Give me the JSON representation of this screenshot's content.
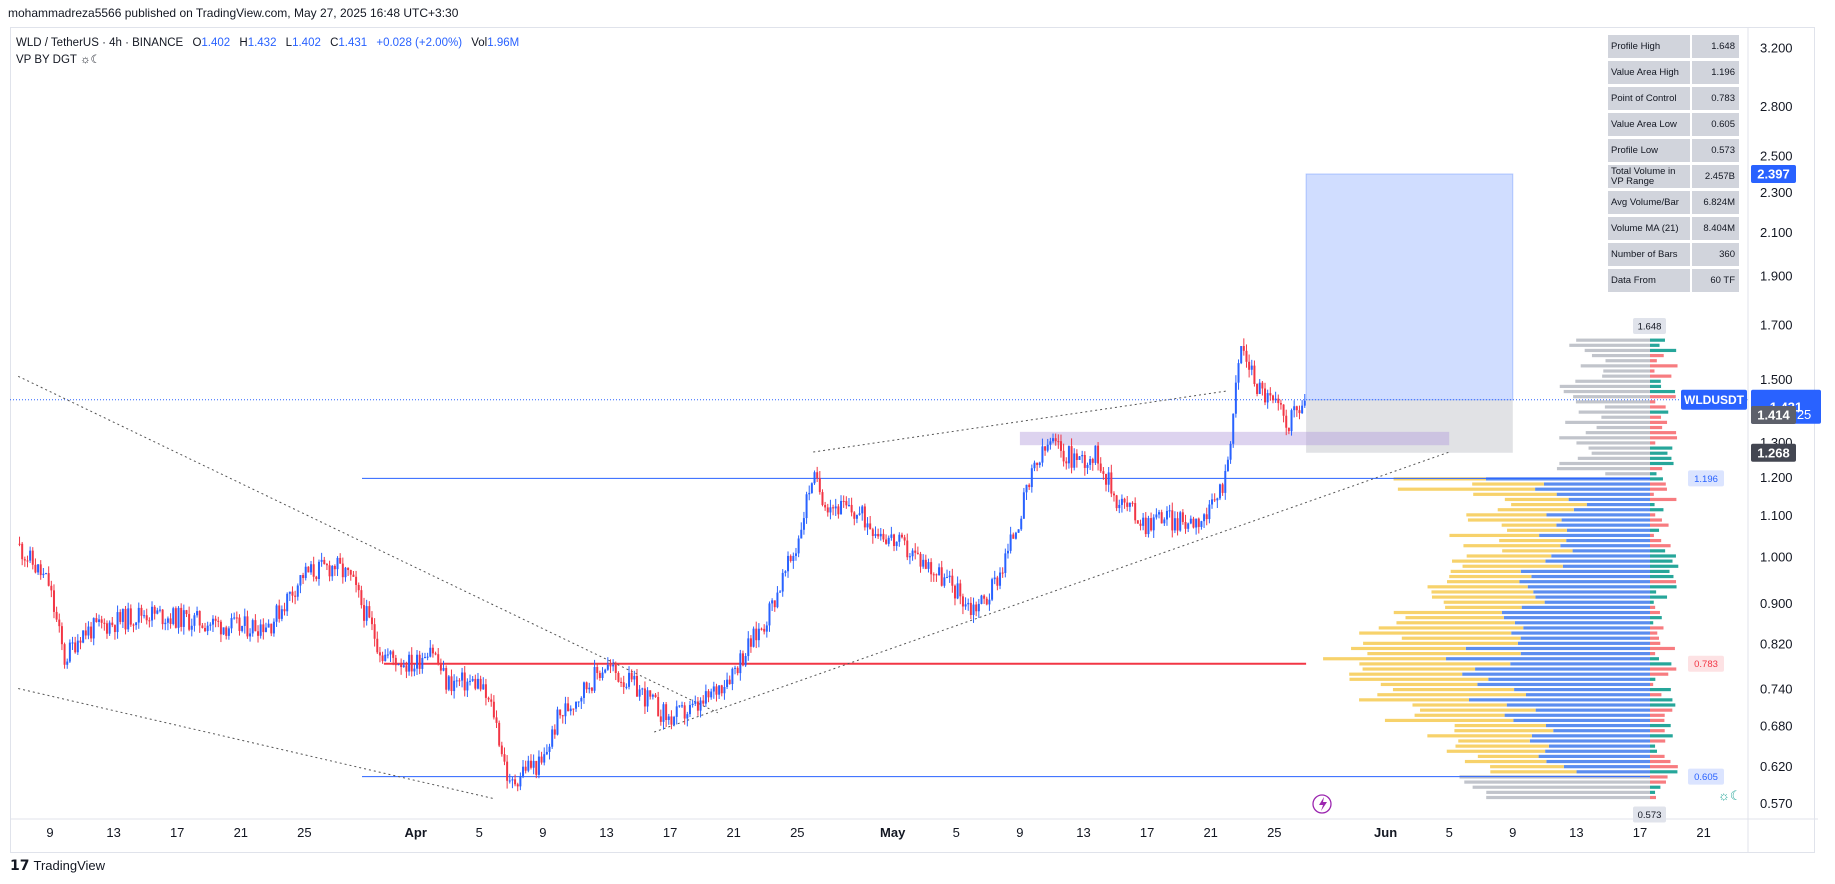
{
  "header": {
    "published": "mohammadreza5566 published on TradingView.com, May 27, 2025 16:48 UTC+3:30"
  },
  "legend": {
    "symbol": "WLD / TetherUS · 4h · BINANCE",
    "o_label": "O",
    "o": "1.402",
    "h_label": "H",
    "h": "1.432",
    "l_label": "L",
    "l": "1.402",
    "c_label": "C",
    "c": "1.431",
    "change": "+0.028 (+2.00%)",
    "vol_label": "Vol",
    "vol": "1.96M",
    "indicator": "VP BY DGT"
  },
  "stats_table": [
    {
      "name": "Profile High",
      "value": "1.648"
    },
    {
      "name": "Value Area High",
      "value": "1.196"
    },
    {
      "name": "Point of Control",
      "value": "0.783"
    },
    {
      "name": "Value Area Low",
      "value": "0.605"
    },
    {
      "name": "Profile Low",
      "value": "0.573"
    },
    {
      "name": "Total Volume in VP Range",
      "value": "2.457B"
    },
    {
      "name": "Avg Volume/Bar",
      "value": "6.824M"
    },
    {
      "name": "Volume MA (21)",
      "value": "8.404M"
    },
    {
      "name": "Number of Bars",
      "value": "360"
    },
    {
      "name": "Data From",
      "value": "60 TF"
    }
  ],
  "price_labels": {
    "target": "2.397",
    "symbol_tag": "WLDUSDT",
    "last_price": "1.431",
    "countdown": "02:41:25",
    "level_a": "1.414",
    "level_b": "1.268",
    "profile_high": "1.648",
    "vah": "1.196",
    "poc": "0.783",
    "val": "0.605",
    "profile_low": "0.573"
  },
  "footer": {
    "brand": "TradingView"
  },
  "colors": {
    "up": "#2962ff",
    "down": "#f23645",
    "poc_line": "#f23645",
    "va_line": "#2962ff",
    "vp_yellow": "#f7d26b",
    "vp_blue": "#5b8def",
    "vp_grey": "#b2b5be",
    "vp_green": "#26a69a",
    "vp_red": "#f77c80",
    "target_box": "#2962ff",
    "resistance_zone": "#b39ddb"
  },
  "chart_data": {
    "type": "candlestick",
    "symbol": "WLD / TetherUS",
    "timeframe": "4h",
    "y_scale": "log",
    "y_ticks": [
      3.2,
      2.8,
      2.5,
      2.3,
      2.1,
      1.9,
      1.7,
      1.5,
      1.3,
      1.2,
      1.1,
      1.0,
      0.9,
      0.82,
      0.74,
      0.68,
      0.62,
      0.57
    ],
    "y_tick_labels": [
      "3.200",
      "2.800",
      "2.500",
      "2.300",
      "2.100",
      "1.900",
      "1.700",
      "1.500",
      "1.300",
      "1.200",
      "1.100",
      "1.000",
      "0.900",
      "0.820",
      "0.740",
      "0.680",
      "0.620",
      "0.570"
    ],
    "x_ticks": [
      {
        "date": "2025-03-09",
        "label": "9"
      },
      {
        "date": "2025-03-13",
        "label": "13"
      },
      {
        "date": "2025-03-17",
        "label": "17"
      },
      {
        "date": "2025-03-21",
        "label": "21"
      },
      {
        "date": "2025-03-25",
        "label": "25"
      },
      {
        "date": "2025-04-01",
        "label": "Apr"
      },
      {
        "date": "2025-04-05",
        "label": "5"
      },
      {
        "date": "2025-04-09",
        "label": "9"
      },
      {
        "date": "2025-04-13",
        "label": "13"
      },
      {
        "date": "2025-04-17",
        "label": "17"
      },
      {
        "date": "2025-04-21",
        "label": "21"
      },
      {
        "date": "2025-04-25",
        "label": "25"
      },
      {
        "date": "2025-05-01",
        "label": "May"
      },
      {
        "date": "2025-05-05",
        "label": "5"
      },
      {
        "date": "2025-05-09",
        "label": "9"
      },
      {
        "date": "2025-05-13",
        "label": "13"
      },
      {
        "date": "2025-05-17",
        "label": "17"
      },
      {
        "date": "2025-05-21",
        "label": "21"
      },
      {
        "date": "2025-05-25",
        "label": "25"
      },
      {
        "date": "2025-06-01",
        "label": "Jun"
      },
      {
        "date": "2025-06-05",
        "label": "5"
      },
      {
        "date": "2025-06-09",
        "label": "9"
      },
      {
        "date": "2025-06-13",
        "label": "13"
      },
      {
        "date": "2025-06-17",
        "label": "17"
      },
      {
        "date": "2025-06-21",
        "label": "21"
      }
    ],
    "price_path": [
      {
        "date": "2025-03-07",
        "close": 1.03
      },
      {
        "date": "2025-03-09",
        "close": 0.94
      },
      {
        "date": "2025-03-10",
        "close": 0.79
      },
      {
        "date": "2025-03-11",
        "close": 0.84
      },
      {
        "date": "2025-03-13",
        "close": 0.86
      },
      {
        "date": "2025-03-15",
        "close": 0.88
      },
      {
        "date": "2025-03-17",
        "close": 0.87
      },
      {
        "date": "2025-03-19",
        "close": 0.86
      },
      {
        "date": "2025-03-21",
        "close": 0.85
      },
      {
        "date": "2025-03-23",
        "close": 0.86
      },
      {
        "date": "2025-03-25",
        "close": 0.96
      },
      {
        "date": "2025-03-27",
        "close": 0.98
      },
      {
        "date": "2025-03-28",
        "close": 0.95
      },
      {
        "date": "2025-03-30",
        "close": 0.8
      },
      {
        "date": "2025-04-01",
        "close": 0.78
      },
      {
        "date": "2025-04-02",
        "close": 0.82
      },
      {
        "date": "2025-04-03",
        "close": 0.75
      },
      {
        "date": "2025-04-05",
        "close": 0.75
      },
      {
        "date": "2025-04-06",
        "close": 0.7
      },
      {
        "date": "2025-04-07",
        "close": 0.59
      },
      {
        "date": "2025-04-08",
        "close": 0.62
      },
      {
        "date": "2025-04-09",
        "close": 0.62
      },
      {
        "date": "2025-04-10",
        "close": 0.69
      },
      {
        "date": "2025-04-12",
        "close": 0.75
      },
      {
        "date": "2025-04-13",
        "close": 0.78
      },
      {
        "date": "2025-04-15",
        "close": 0.74
      },
      {
        "date": "2025-04-17",
        "close": 0.69
      },
      {
        "date": "2025-04-19",
        "close": 0.71
      },
      {
        "date": "2025-04-21",
        "close": 0.77
      },
      {
        "date": "2025-04-23",
        "close": 0.86
      },
      {
        "date": "2025-04-25",
        "close": 1.02
      },
      {
        "date": "2025-04-26",
        "close": 1.2
      },
      {
        "date": "2025-04-27",
        "close": 1.13
      },
      {
        "date": "2025-04-29",
        "close": 1.1
      },
      {
        "date": "2025-05-01",
        "close": 1.04
      },
      {
        "date": "2025-05-03",
        "close": 0.99
      },
      {
        "date": "2025-05-05",
        "close": 0.93
      },
      {
        "date": "2025-05-06",
        "close": 0.89
      },
      {
        "date": "2025-05-07",
        "close": 0.91
      },
      {
        "date": "2025-05-08",
        "close": 0.98
      },
      {
        "date": "2025-05-09",
        "close": 1.09
      },
      {
        "date": "2025-05-10",
        "close": 1.22
      },
      {
        "date": "2025-05-11",
        "close": 1.3
      },
      {
        "date": "2025-05-12",
        "close": 1.26
      },
      {
        "date": "2025-05-13",
        "close": 1.25
      },
      {
        "date": "2025-05-14",
        "close": 1.26
      },
      {
        "date": "2025-05-15",
        "close": 1.15
      },
      {
        "date": "2025-05-17",
        "close": 1.08
      },
      {
        "date": "2025-05-18",
        "close": 1.1
      },
      {
        "date": "2025-05-19",
        "close": 1.08
      },
      {
        "date": "2025-05-21",
        "close": 1.1
      },
      {
        "date": "2025-05-22",
        "close": 1.2
      },
      {
        "date": "2025-05-23",
        "close": 1.62
      },
      {
        "date": "2025-05-24",
        "close": 1.48
      },
      {
        "date": "2025-05-25",
        "close": 1.42
      },
      {
        "date": "2025-05-26",
        "close": 1.36
      },
      {
        "date": "2025-05-27",
        "close": 1.431
      }
    ],
    "horizontal_levels": [
      {
        "name": "Value Area High",
        "value": 1.196
      },
      {
        "name": "Point of Control",
        "value": 0.783
      },
      {
        "name": "Value Area Low",
        "value": 0.605
      },
      {
        "name": "Last price",
        "value": 1.431
      }
    ],
    "target_box": {
      "from": "2025-05-27",
      "to": "2025-06-09",
      "bottom": 1.431,
      "top": 2.397
    },
    "stop_box": {
      "bottom": 1.268,
      "top": 1.431
    },
    "resistance_zone": {
      "from": "2025-05-09",
      "to": "2025-06-05",
      "bottom": 1.29,
      "top": 1.33
    },
    "trendlines": [
      {
        "from": {
          "date": "2025-03-07",
          "price": 1.51
        },
        "to": {
          "date": "2025-04-20",
          "price": 0.7
        }
      },
      {
        "from": {
          "date": "2025-03-07",
          "price": 0.74
        },
        "to": {
          "date": "2025-04-06",
          "price": 0.575
        }
      },
      {
        "from": {
          "date": "2025-04-16",
          "price": 0.67
        },
        "to": {
          "date": "2025-06-05",
          "price": 1.27
        }
      },
      {
        "from": {
          "date": "2025-04-26",
          "price": 1.27
        },
        "to": {
          "date": "2025-05-22",
          "price": 1.46
        }
      }
    ],
    "volume_profile": {
      "profile_high": 1.648,
      "value_area_high": 1.196,
      "point_of_control": 0.783,
      "value_area_low": 0.605,
      "profile_low": 0.573,
      "total_volume": "2.457B",
      "number_of_bars": 360
    }
  }
}
